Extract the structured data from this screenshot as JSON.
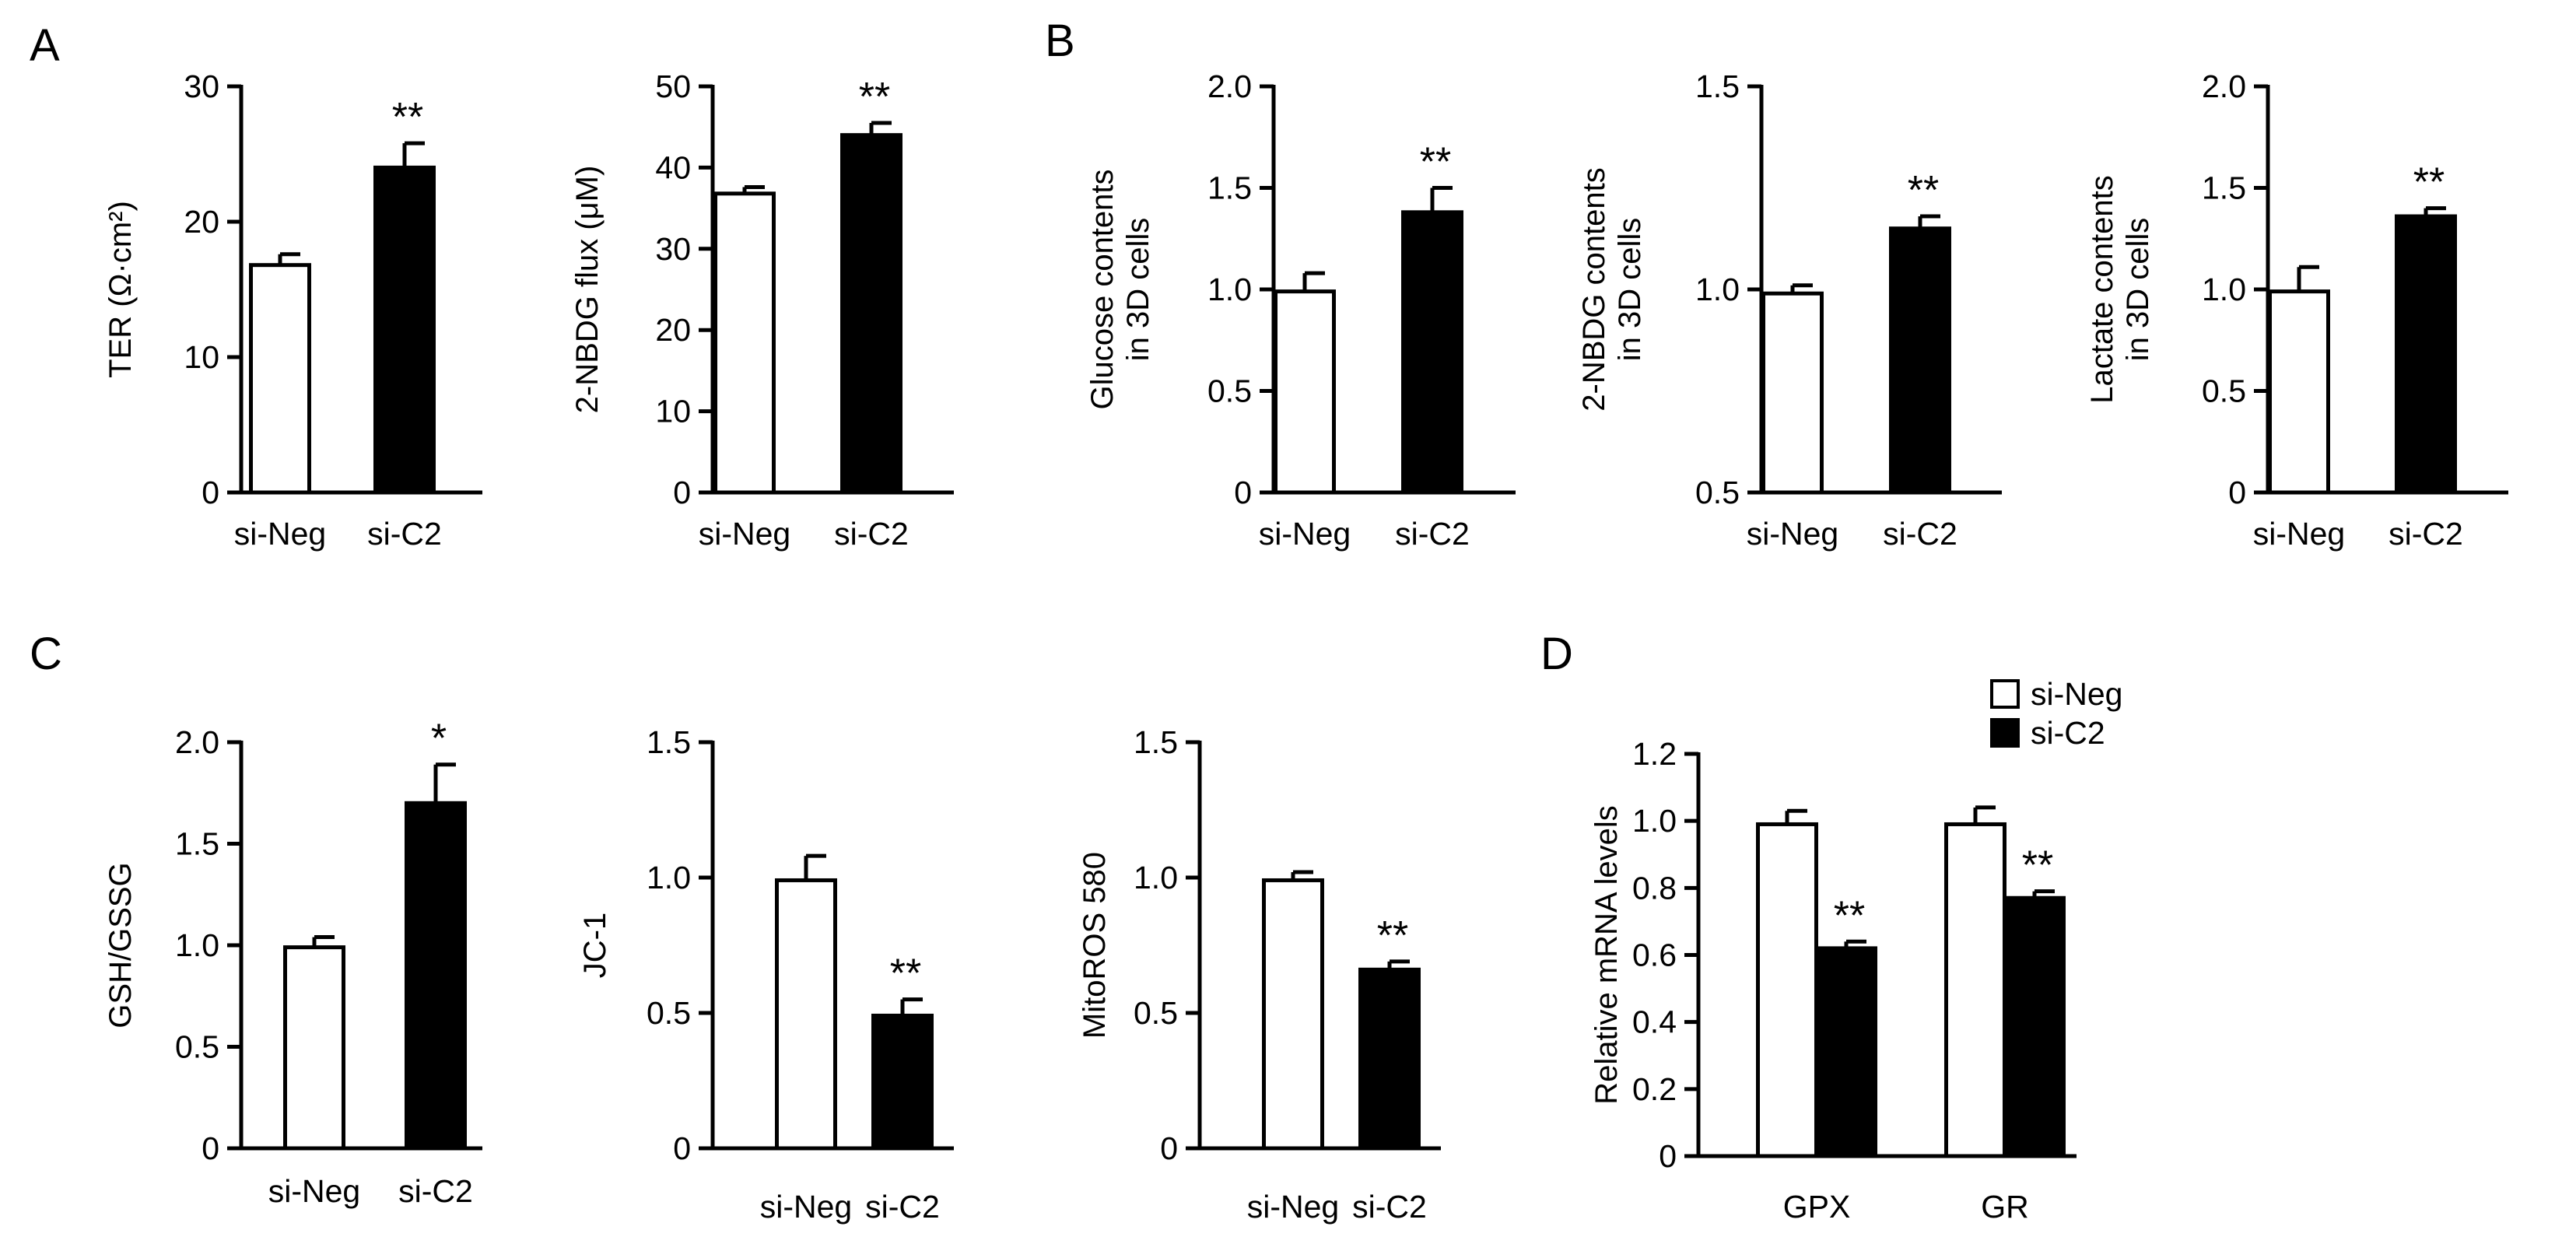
{
  "panels": [
    {
      "letter": "A"
    },
    {
      "letter": "B"
    },
    {
      "letter": "C"
    },
    {
      "letter": "D"
    }
  ],
  "chart_data": [
    {
      "panel": "A",
      "type": "bar",
      "categories": [
        "si-Neg",
        "si-C2"
      ],
      "values": [
        16.8,
        24.0
      ],
      "errors": [
        0.8,
        1.8
      ],
      "significance": [
        "",
        "**"
      ],
      "bar_fills": [
        "#ffffff",
        "#000000"
      ],
      "ylabel_lines": [
        "TER (Ω·cm²)"
      ],
      "ylim": [
        0,
        30
      ],
      "yticks": [
        "0",
        "10",
        "20",
        "30"
      ]
    },
    {
      "panel": "A",
      "type": "bar",
      "categories": [
        "si-Neg",
        "si-C2"
      ],
      "values": [
        36.8,
        44.0
      ],
      "errors": [
        0.8,
        1.5
      ],
      "significance": [
        "",
        "**"
      ],
      "bar_fills": [
        "#ffffff",
        "#000000"
      ],
      "ylabel_lines": [
        "2-NBDG flux (μM)"
      ],
      "ylim": [
        0,
        50
      ],
      "yticks": [
        "0",
        "10",
        "20",
        "30",
        "40",
        "50"
      ]
    },
    {
      "panel": "B",
      "type": "bar",
      "categories": [
        "si-Neg",
        "si-C2"
      ],
      "values": [
        0.99,
        1.38
      ],
      "errors": [
        0.09,
        0.12
      ],
      "significance": [
        "",
        "**"
      ],
      "bar_fills": [
        "#ffffff",
        "#000000"
      ],
      "ylabel_lines": [
        "Glucose contents",
        "in 3D cells"
      ],
      "ylim": [
        0,
        2.0
      ],
      "yticks": [
        "0",
        "0.5",
        "1.0",
        "1.5",
        "2.0"
      ]
    },
    {
      "panel": "B",
      "type": "bar",
      "categories": [
        "si-Neg",
        "si-C2"
      ],
      "values": [
        0.99,
        1.15
      ],
      "errors": [
        0.02,
        0.03
      ],
      "significance": [
        "",
        "**"
      ],
      "bar_fills": [
        "#ffffff",
        "#000000"
      ],
      "ylabel_lines": [
        "2-NBDG contents",
        "in 3D cells"
      ],
      "ylim": [
        0.5,
        1.5
      ],
      "yticks": [
        "0.5",
        "1.0",
        "1.5"
      ]
    },
    {
      "panel": "B",
      "type": "bar",
      "categories": [
        "si-Neg",
        "si-C2"
      ],
      "values": [
        0.99,
        1.36
      ],
      "errors": [
        0.12,
        0.04
      ],
      "significance": [
        "",
        "**"
      ],
      "bar_fills": [
        "#ffffff",
        "#000000"
      ],
      "ylabel_lines": [
        "Lactate contents",
        "in 3D cells"
      ],
      "ylim": [
        0,
        2.0
      ],
      "yticks": [
        "0",
        "0.5",
        "1.0",
        "1.5",
        "2.0"
      ]
    },
    {
      "panel": "C",
      "type": "bar",
      "categories": [
        "si-Neg",
        "si-C2"
      ],
      "values": [
        0.99,
        1.7
      ],
      "errors": [
        0.05,
        0.19
      ],
      "significance": [
        "",
        "*"
      ],
      "bar_fills": [
        "#ffffff",
        "#000000"
      ],
      "ylabel_lines": [
        "GSH/GSSG"
      ],
      "ylim": [
        0,
        2.0
      ],
      "yticks": [
        "0",
        "0.5",
        "1.0",
        "1.5",
        "2.0"
      ]
    },
    {
      "panel": "C",
      "type": "bar",
      "categories": [
        "si-Neg",
        "si-C2"
      ],
      "values": [
        0.99,
        0.49
      ],
      "errors": [
        0.09,
        0.06
      ],
      "significance": [
        "",
        "**"
      ],
      "bar_fills": [
        "#ffffff",
        "#000000"
      ],
      "ylabel_lines": [
        "JC-1"
      ],
      "ylim": [
        0,
        1.5
      ],
      "yticks": [
        "0",
        "0.5",
        "1.0",
        "1.5"
      ]
    },
    {
      "panel": "C",
      "type": "bar",
      "categories": [
        "si-Neg",
        "si-C2"
      ],
      "values": [
        0.99,
        0.66
      ],
      "errors": [
        0.03,
        0.03
      ],
      "significance": [
        "",
        "**"
      ],
      "bar_fills": [
        "#ffffff",
        "#000000"
      ],
      "ylabel_lines": [
        "MitoROS 580"
      ],
      "ylim": [
        0,
        1.5
      ],
      "yticks": [
        "0",
        "0.5",
        "1.0",
        "1.5"
      ]
    },
    {
      "panel": "D",
      "type": "bar",
      "categories": [
        "GPX",
        "GR"
      ],
      "series": [
        {
          "name": "si-Neg",
          "fill": "#ffffff",
          "values": [
            0.99,
            0.99
          ],
          "errors": [
            0.04,
            0.05
          ],
          "significance": [
            "",
            ""
          ]
        },
        {
          "name": "si-C2",
          "fill": "#000000",
          "values": [
            0.62,
            0.77
          ],
          "errors": [
            0.02,
            0.02
          ],
          "significance": [
            "**",
            "**"
          ]
        }
      ],
      "ylabel_lines": [
        "Relative mRNA levels"
      ],
      "ylim": [
        0,
        1.2
      ],
      "yticks": [
        "0",
        "0.2",
        "0.4",
        "0.6",
        "0.8",
        "1.0",
        "1.2"
      ],
      "legend": "top-right"
    }
  ]
}
